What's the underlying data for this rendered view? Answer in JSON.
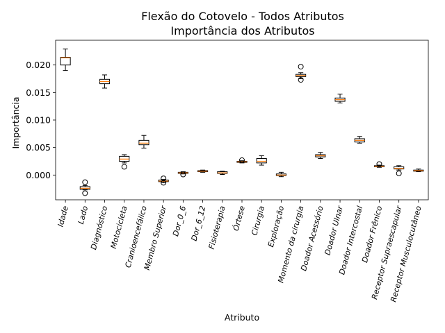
{
  "chart_data": {
    "type": "box",
    "title_line1": "Flexão do Cotovelo - Todos Atributos",
    "title_line2": "Importância dos Atributos",
    "xlabel": "Atributo",
    "ylabel": "Importância",
    "ylim": [
      -0.0045,
      0.0245
    ],
    "yticks": [
      0.0,
      0.005,
      0.01,
      0.015,
      0.02
    ],
    "ytick_labels": [
      "0.000",
      "0.005",
      "0.010",
      "0.015",
      "0.020"
    ],
    "grid": false,
    "categories": [
      "Idade",
      "Lado",
      "Diagnóstico",
      "Motocicleta",
      "Cranioencefálico",
      "Membro Superior",
      "Dor_0_6",
      "Dor_6_12",
      "Fisioterapia",
      "Órtese",
      "Cirurgia",
      "Exploração",
      "Momento da cirurgia",
      "Doador Acessório",
      "Doador Ulnar",
      "Doador Intercostal",
      "Doador Frênico",
      "Receptor Supraescapular",
      "Receptor Musculocutâneo"
    ],
    "boxes": [
      {
        "whislo": 0.019,
        "q1": 0.02,
        "med": 0.0213,
        "q3": 0.0214,
        "whishi": 0.0229,
        "fliers": []
      },
      {
        "whislo": -0.0027,
        "q1": -0.0026,
        "med": -0.0024,
        "q3": -0.0021,
        "whishi": -0.0019,
        "fliers": [
          -0.0013,
          -0.0033
        ]
      },
      {
        "whislo": 0.0158,
        "q1": 0.0166,
        "med": 0.017,
        "q3": 0.0174,
        "whishi": 0.0182,
        "fliers": []
      },
      {
        "whislo": 0.0022,
        "q1": 0.0025,
        "med": 0.0029,
        "q3": 0.0034,
        "whishi": 0.0037,
        "fliers": [
          0.0015
        ]
      },
      {
        "whislo": 0.0049,
        "q1": 0.0055,
        "med": 0.0058,
        "q3": 0.0063,
        "whishi": 0.0072,
        "fliers": []
      },
      {
        "whislo": -0.0014,
        "q1": -0.0012,
        "med": -0.0011,
        "q3": -0.0009,
        "whishi": -0.0008,
        "fliers": [
          -0.0006,
          -0.0014
        ]
      },
      {
        "whislo": 0.0002,
        "q1": 0.0003,
        "med": 0.0004,
        "q3": 0.0005,
        "whishi": 0.0006,
        "fliers": [
          0.0001
        ]
      },
      {
        "whislo": 0.0005,
        "q1": 0.0006,
        "med": 0.0007,
        "q3": 0.0008,
        "whishi": 0.0009,
        "fliers": []
      },
      {
        "whislo": 0.0001,
        "q1": 0.0003,
        "med": 0.0004,
        "q3": 0.0006,
        "whishi": 0.0007,
        "fliers": []
      },
      {
        "whislo": 0.0022,
        "q1": 0.0023,
        "med": 0.0024,
        "q3": 0.0025,
        "whishi": 0.0026,
        "fliers": [
          0.0027
        ]
      },
      {
        "whislo": 0.0018,
        "q1": 0.0022,
        "med": 0.0025,
        "q3": 0.003,
        "whishi": 0.0035,
        "fliers": []
      },
      {
        "whislo": -0.0003,
        "q1": -0.0001,
        "med": 0.0,
        "q3": 0.0002,
        "whishi": 0.0005,
        "fliers": []
      },
      {
        "whislo": 0.0175,
        "q1": 0.0179,
        "med": 0.0181,
        "q3": 0.0183,
        "whishi": 0.0186,
        "fliers": [
          0.0197,
          0.0173
        ]
      },
      {
        "whislo": 0.003,
        "q1": 0.0033,
        "med": 0.0035,
        "q3": 0.0037,
        "whishi": 0.0041,
        "fliers": []
      },
      {
        "whislo": 0.0131,
        "q1": 0.0134,
        "med": 0.0137,
        "q3": 0.014,
        "whishi": 0.0147,
        "fliers": []
      },
      {
        "whislo": 0.0058,
        "q1": 0.006,
        "med": 0.0063,
        "q3": 0.0066,
        "whishi": 0.007,
        "fliers": []
      },
      {
        "whislo": 0.0014,
        "q1": 0.0015,
        "med": 0.0016,
        "q3": 0.0017,
        "whishi": 0.0018,
        "fliers": [
          0.002
        ]
      },
      {
        "whislo": 0.0009,
        "q1": 0.0011,
        "med": 0.0012,
        "q3": 0.0015,
        "whishi": 0.0017,
        "fliers": [
          0.0003
        ]
      },
      {
        "whislo": 0.0006,
        "q1": 0.0007,
        "med": 0.0008,
        "q3": 0.0009,
        "whishi": 0.0011,
        "fliers": []
      }
    ],
    "colors": {
      "box": "#000000",
      "median": "#ff7f0e",
      "flier": "#000000",
      "background": "#ffffff"
    }
  }
}
